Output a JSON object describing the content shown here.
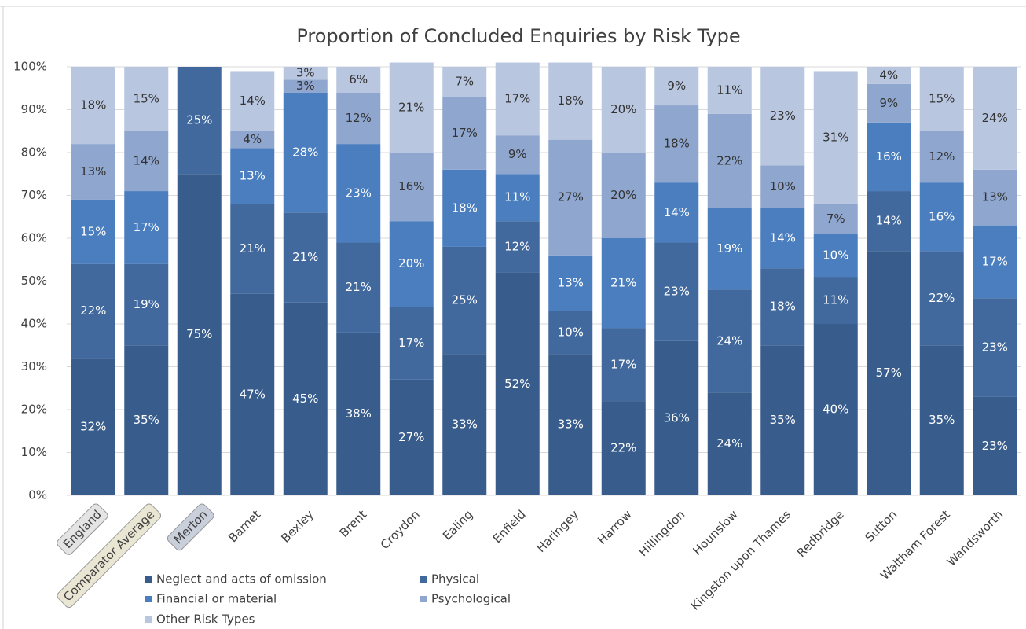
{
  "chart_data": {
    "type": "stacked_bar",
    "title": "Proportion of Concluded Enquiries by Risk Type",
    "categories": [
      "England",
      "Comparator Average",
      "Merton",
      "Barnet",
      "Bexley",
      "Brent",
      "Croydon",
      "Ealing",
      "Enfield",
      "Haringey",
      "Harrow",
      "Hillingdon",
      "Hounslow",
      "Kingston upon Thames",
      "Redbridge",
      "Sutton",
      "Waltham Forest",
      "Wandsworth"
    ],
    "highlights": [
      {
        "index": 0,
        "color": "#e4e4e4"
      },
      {
        "index": 1,
        "color": "#e9e6d3"
      },
      {
        "index": 2,
        "color": "#c9d0dc"
      }
    ],
    "series": [
      {
        "name": "Neglect and acts of omission",
        "color": "#385d8c",
        "label_color": "#ffffff",
        "values": [
          32,
          35,
          75,
          47,
          45,
          38,
          27,
          33,
          52,
          33,
          22,
          36,
          24,
          35,
          40,
          57,
          35,
          23
        ],
        "value_labels": [
          "32%",
          "35%",
          "75%",
          "47%",
          "45%",
          "38%",
          "27%",
          "33%",
          "52%",
          "33%",
          "22%",
          "36%",
          "24%",
          "35%",
          "40%",
          "57%",
          "35%",
          "23%"
        ]
      },
      {
        "name": "Physical",
        "color": "#41699e",
        "label_color": "#ffffff",
        "values": [
          22,
          19,
          25,
          21,
          21,
          21,
          17,
          25,
          12,
          10,
          17,
          23,
          24,
          18,
          11,
          14,
          22,
          23
        ],
        "value_labels": [
          "22%",
          "19%",
          "25%",
          "21%",
          "21%",
          "21%",
          "17%",
          "25%",
          "12%",
          "10%",
          "17%",
          "23%",
          "24%",
          "18%",
          "11%",
          "14%",
          "22%",
          "23%"
        ]
      },
      {
        "name": "Financial or material",
        "color": "#4a7ebf",
        "label_color": "#ffffff",
        "values": [
          15,
          17,
          0,
          13,
          28,
          23,
          20,
          18,
          11,
          13,
          21,
          14,
          19,
          14,
          10,
          16,
          16,
          17
        ],
        "value_labels": [
          "15%",
          "17%",
          null,
          "13%",
          "28%",
          "23%",
          "20%",
          "18%",
          "11%",
          "13%",
          "21%",
          "14%",
          "19%",
          "14%",
          "10%",
          "16%",
          "16%",
          "17%"
        ]
      },
      {
        "name": "Psychological",
        "color": "#8fa6cf",
        "label_color": "#333333",
        "values": [
          13,
          14,
          0,
          4,
          3,
          12,
          16,
          17,
          9,
          27,
          20,
          18,
          22,
          10,
          7,
          9,
          12,
          13
        ],
        "value_labels": [
          "13%",
          "14%",
          null,
          "4%",
          "3%",
          "12%",
          "16%",
          "17%",
          "9%",
          "27%",
          "20%",
          "18%",
          "22%",
          "10%",
          "7%",
          "9%",
          "12%",
          "13%"
        ]
      },
      {
        "name": "Other Risk Types",
        "color": "#b9c6e0",
        "label_color": "#333333",
        "values": [
          18,
          15,
          0,
          14,
          3,
          6,
          21,
          7,
          17,
          18,
          20,
          9,
          11,
          23,
          31,
          4,
          15,
          24
        ],
        "value_labels": [
          "18%",
          "15%",
          null,
          "14%",
          "3%",
          "6%",
          "21%",
          "7%",
          "17%",
          "18%",
          "20%",
          "9%",
          "11%",
          "23%",
          "31%",
          "4%",
          "15%",
          "24%"
        ]
      }
    ],
    "ylim": [
      0,
      100
    ],
    "yticks": [
      {
        "value": 0,
        "label": "0%"
      },
      {
        "value": 10,
        "label": "10%"
      },
      {
        "value": 20,
        "label": "20%"
      },
      {
        "value": 30,
        "label": "30%"
      },
      {
        "value": 40,
        "label": "40%"
      },
      {
        "value": 50,
        "label": "50%"
      },
      {
        "value": 60,
        "label": "60%"
      },
      {
        "value": 70,
        "label": "70%"
      },
      {
        "value": 80,
        "label": "80%"
      },
      {
        "value": 90,
        "label": "90%"
      },
      {
        "value": 100,
        "label": "100%"
      }
    ],
    "grid": true,
    "legend": "bottom"
  }
}
